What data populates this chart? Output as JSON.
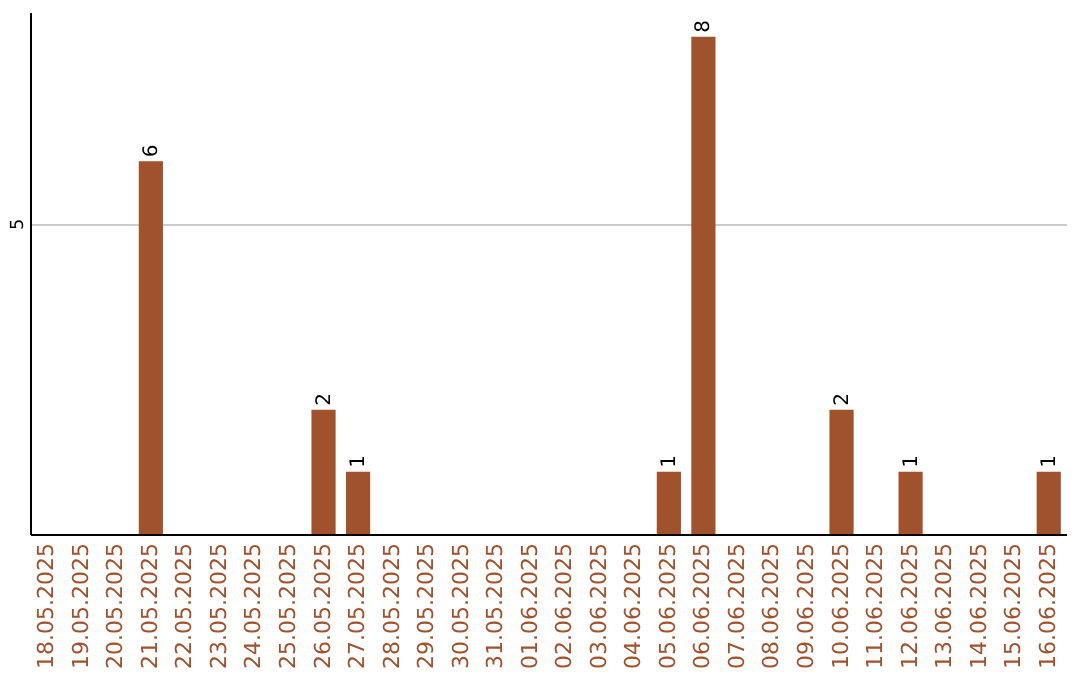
{
  "chart_data": {
    "type": "bar",
    "categories": [
      "18.05.2025",
      "19.05.2025",
      "20.05.2025",
      "21.05.2025",
      "22.05.2025",
      "23.05.2025",
      "24.05.2025",
      "25.05.2025",
      "26.05.2025",
      "27.05.2025",
      "28.05.2025",
      "29.05.2025",
      "30.05.2025",
      "31.05.2025",
      "01.06.2025",
      "02.06.2025",
      "03.06.2025",
      "04.06.2025",
      "05.06.2025",
      "06.06.2025",
      "07.06.2025",
      "08.06.2025",
      "09.06.2025",
      "10.06.2025",
      "11.06.2025",
      "12.06.2025",
      "13.06.2025",
      "14.06.2025",
      "15.06.2025",
      "16.06.2025"
    ],
    "series": [
      {
        "color": "#a0522d",
        "values": [
          null,
          null,
          null,
          6,
          null,
          null,
          null,
          null,
          2,
          1,
          null,
          null,
          null,
          null,
          null,
          null,
          null,
          null,
          1,
          8,
          null,
          null,
          null,
          2,
          null,
          1,
          null,
          null,
          null,
          1
        ]
      }
    ],
    "ylim": [
      0,
      8.4
    ],
    "yticks": [
      5
    ],
    "grid": "y",
    "data_labels": true
  }
}
